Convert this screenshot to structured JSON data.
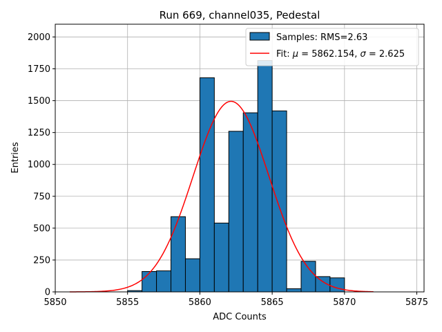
{
  "chart_data": {
    "type": "bar",
    "title": "Run 669, channel035, Pedestal",
    "xlabel": "ADC Counts",
    "ylabel": "Entries",
    "xlim": [
      5850,
      5875.5
    ],
    "ylim": [
      0,
      2100
    ],
    "xticks": [
      5850,
      5855,
      5860,
      5865,
      5870,
      5875
    ],
    "yticks": [
      0,
      250,
      500,
      750,
      1000,
      1250,
      1500,
      1750,
      2000
    ],
    "grid": true,
    "legend_position": "top-right",
    "bar_color": "#1f77b4",
    "fit_color": "#ff0000",
    "histogram": {
      "name": "Samples: RMS=2.63",
      "bin_left_edges": [
        5855,
        5856,
        5857,
        5858,
        5859,
        5860,
        5861,
        5862,
        5863,
        5864,
        5865,
        5866,
        5867,
        5868,
        5869
      ],
      "bin_width": 1,
      "counts": [
        10,
        160,
        165,
        590,
        260,
        1680,
        540,
        1260,
        1405,
        1815,
        1420,
        25,
        240,
        120,
        110
      ]
    },
    "fit": {
      "name": "Fit: μ = 5862.154, σ = 2.625",
      "name_parts": [
        "Fit: ",
        "μ",
        " = 5862.154, ",
        "σ",
        " = 2.625"
      ],
      "mu": 5862.154,
      "sigma": 2.625,
      "amplitude": 1495,
      "x_range": [
        5851,
        5872
      ]
    }
  }
}
